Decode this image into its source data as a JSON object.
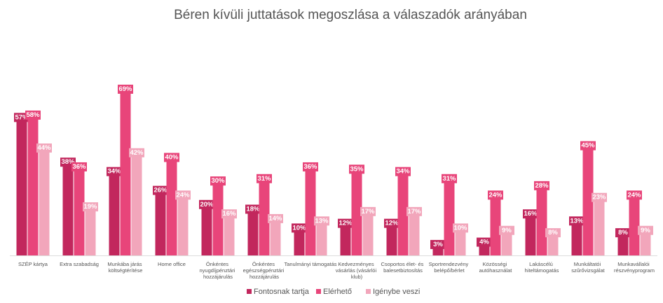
{
  "chart_data": {
    "type": "bar",
    "title": "Béren kívüli juttatások megoszlása a válaszadók arányában",
    "categories": [
      "SZÉP kártya",
      "Extra szabadság",
      "Munkába járás költségtérítése",
      "Home office",
      "Önkéntes nyugdíjpénztári hozzájárulás",
      "Önkéntes egészségpénztári hozzájárulás",
      "Tanulmányi támogatás",
      "Kedvezményes vásárlás (vásárlói klub)",
      "Csoportos élet- és balesetbiztosítás",
      "Sportrendezvény belépő/bérlet",
      "Közösségi autóhasználat",
      "Lakáscélú hiteltámogatás",
      "Munkáltatói szűrővizsgálat",
      "Munkavállalói részvényprogram"
    ],
    "series": [
      {
        "name": "Fontosnak tartja",
        "color": "#c2275d",
        "values": [
          57,
          38,
          34,
          26,
          20,
          18,
          10,
          12,
          12,
          3,
          4,
          16,
          13,
          8
        ],
        "value_labels": [
          "57%",
          "38%",
          "34%",
          "26%",
          "20%",
          "18%",
          "10%",
          "12%",
          "12%",
          "3%",
          "4%",
          "16%",
          "13%",
          "8%"
        ]
      },
      {
        "name": "Elérhető",
        "color": "#e8457a",
        "values": [
          58,
          36,
          69,
          40,
          30,
          31,
          36,
          35,
          34,
          31,
          24,
          28,
          45,
          24
        ],
        "value_labels": [
          "58%",
          "36%",
          "69%",
          "40%",
          "30%",
          "31%",
          "36%",
          "35%",
          "34%",
          "31%",
          "24%",
          "28%",
          "45%",
          "24%"
        ]
      },
      {
        "name": "Igénybe veszi",
        "color": "#f2a6bb",
        "values": [
          44,
          19,
          42,
          24,
          16,
          14,
          13,
          17,
          17,
          10,
          9,
          8,
          23,
          9
        ],
        "value_labels": [
          "44%",
          "19%",
          "42%",
          "24%",
          "16%",
          "14%",
          "13%",
          "17%",
          "17%",
          "10%",
          "9%",
          "8%",
          "23%",
          "9%"
        ]
      }
    ]
  }
}
